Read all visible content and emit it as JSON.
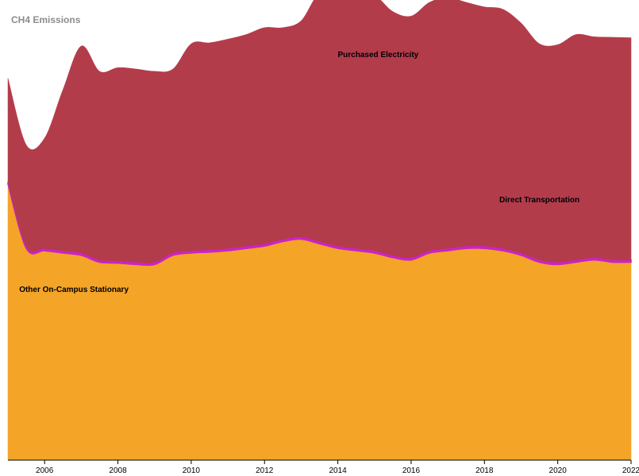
{
  "chart_data": {
    "type": "area",
    "stacked": true,
    "title": "CH4 Emissions",
    "x": [
      2005,
      2005.5,
      2006,
      2006.5,
      2007,
      2007.5,
      2008,
      2008.5,
      2009,
      2009.5,
      2010,
      2010.5,
      2011,
      2011.5,
      2012,
      2012.5,
      2013,
      2013.5,
      2014,
      2014.5,
      2015,
      2015.5,
      2016,
      2016.5,
      2017,
      2017.5,
      2018,
      2018.5,
      2019,
      2019.5,
      2020,
      2020.5,
      2021,
      2021.5,
      2022
    ],
    "xlim": [
      2005,
      2022
    ],
    "ylim": [
      0,
      1
    ],
    "xticks": [
      "2006",
      "2008",
      "2010",
      "2012",
      "2014",
      "2016",
      "2018",
      "2020",
      "2022"
    ],
    "grid": false,
    "legend": "none",
    "series": [
      {
        "name": "Other On-Campus Stationary",
        "color": "#f4a426",
        "values": [
          0.6,
          0.46,
          0.455,
          0.45,
          0.445,
          0.43,
          0.428,
          0.425,
          0.425,
          0.445,
          0.45,
          0.452,
          0.455,
          0.46,
          0.465,
          0.475,
          0.48,
          0.47,
          0.46,
          0.455,
          0.45,
          0.44,
          0.435,
          0.45,
          0.455,
          0.46,
          0.46,
          0.455,
          0.445,
          0.43,
          0.425,
          0.43,
          0.435,
          0.43,
          0.43
        ]
      },
      {
        "name": "Direct Transportation",
        "color": "#cc22cc",
        "values": [
          0.005,
          0.005,
          0.005,
          0.005,
          0.005,
          0.005,
          0.005,
          0.005,
          0.005,
          0.005,
          0.005,
          0.005,
          0.005,
          0.005,
          0.005,
          0.005,
          0.005,
          0.005,
          0.005,
          0.005,
          0.005,
          0.005,
          0.005,
          0.005,
          0.005,
          0.005,
          0.005,
          0.005,
          0.005,
          0.005,
          0.005,
          0.005,
          0.005,
          0.005,
          0.005
        ]
      },
      {
        "name": "Purchased Electricity",
        "color": "#b33c4b",
        "values": [
          0.225,
          0.22,
          0.24,
          0.35,
          0.45,
          0.41,
          0.42,
          0.42,
          0.415,
          0.4,
          0.45,
          0.45,
          0.455,
          0.46,
          0.47,
          0.46,
          0.47,
          0.54,
          0.54,
          0.55,
          0.555,
          0.53,
          0.525,
          0.54,
          0.545,
          0.53,
          0.52,
          0.52,
          0.5,
          0.47,
          0.473,
          0.49,
          0.48,
          0.484,
          0.483
        ]
      }
    ],
    "annotations": [
      {
        "text": "Purchased Electricity",
        "x": 2015.1,
        "y": 0.88
      },
      {
        "text": "Direct Transportation",
        "x": 2019.5,
        "y": 0.565
      },
      {
        "text": "Other On-Campus Stationary",
        "x": 2006.8,
        "y": 0.37
      }
    ]
  }
}
